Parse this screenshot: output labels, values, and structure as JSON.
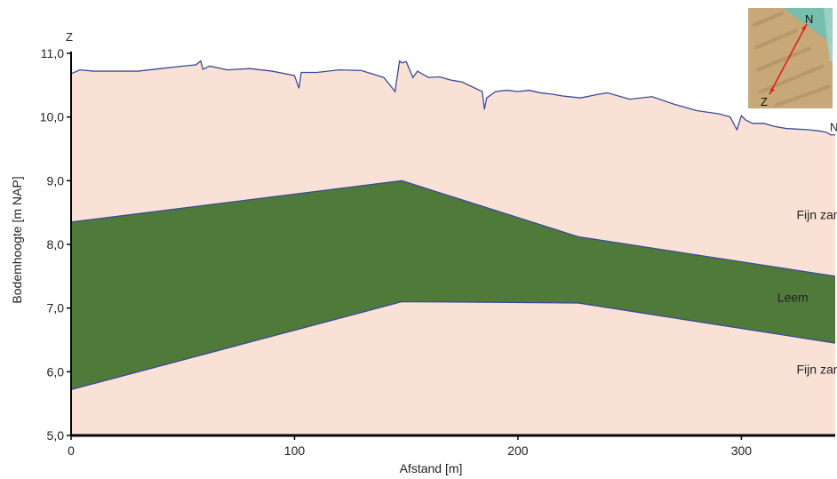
{
  "chart_data": {
    "type": "area",
    "xlabel": "Afstand [m]",
    "ylabel": "Bodemhoogte [m NAP]",
    "xlim": [
      0,
      342
    ],
    "ylim": [
      5,
      11
    ],
    "x_ticks": [
      {
        "value": 0,
        "label": "0"
      },
      {
        "value": 100,
        "label": "100"
      },
      {
        "value": 200,
        "label": "200"
      },
      {
        "value": 300,
        "label": "300"
      }
    ],
    "y_ticks": [
      {
        "value": 5,
        "label": "5,0"
      },
      {
        "value": 6,
        "label": "6,0"
      },
      {
        "value": 7,
        "label": "7,0"
      },
      {
        "value": 8,
        "label": "8,0"
      },
      {
        "value": 9,
        "label": "9,0"
      },
      {
        "value": 10,
        "label": "10,0"
      },
      {
        "value": 11,
        "label": "11,0"
      }
    ],
    "direction_labels": {
      "start": "Z",
      "end": "N"
    },
    "surface": {
      "x": [
        0,
        4,
        10,
        20,
        30,
        40,
        50,
        56,
        58,
        59,
        62,
        70,
        80,
        90,
        100,
        102,
        103,
        105,
        110,
        120,
        130,
        140,
        145,
        147,
        148,
        150,
        153,
        155,
        160,
        165,
        170,
        175,
        184,
        185,
        186,
        188,
        190,
        195,
        200,
        205,
        210,
        215,
        220,
        228,
        235,
        240,
        250,
        260,
        270,
        280,
        290,
        295,
        298,
        300,
        302,
        305,
        310,
        315,
        320,
        330,
        335,
        338,
        340,
        342
      ],
      "y": [
        10.68,
        10.74,
        10.72,
        10.72,
        10.72,
        10.76,
        10.8,
        10.82,
        10.88,
        10.75,
        10.8,
        10.74,
        10.76,
        10.72,
        10.65,
        10.45,
        10.7,
        10.7,
        10.7,
        10.74,
        10.73,
        10.62,
        10.4,
        10.88,
        10.85,
        10.87,
        10.62,
        10.72,
        10.62,
        10.63,
        10.58,
        10.55,
        10.4,
        10.12,
        10.3,
        10.35,
        10.4,
        10.42,
        10.4,
        10.42,
        10.38,
        10.36,
        10.33,
        10.3,
        10.35,
        10.38,
        10.28,
        10.32,
        10.2,
        10.1,
        10.05,
        10.0,
        9.8,
        10.02,
        9.95,
        9.9,
        9.9,
        9.85,
        9.82,
        9.8,
        9.78,
        9.76,
        9.72,
        9.72
      ]
    },
    "layers": [
      {
        "name": "Fijn zand",
        "color": "#f9e1d5",
        "label_pos": {
          "x": 336,
          "y": 8.4
        }
      },
      {
        "name": "Leem",
        "color": "#507a3a",
        "top": {
          "x": [
            0,
            148,
            227,
            342
          ],
          "y": [
            8.35,
            9.0,
            8.12,
            7.5
          ]
        },
        "bottom": {
          "x": [
            0,
            148,
            227,
            342
          ],
          "y": [
            5.72,
            7.1,
            7.08,
            6.45
          ]
        },
        "label_pos": {
          "x": 323,
          "y": 7.1
        }
      },
      {
        "name": "Fijn zand",
        "color": "#f9e1d5",
        "label_pos": {
          "x": 336,
          "y": 5.97
        }
      }
    ],
    "boundary_color": "#3a4a9a",
    "grid": false,
    "legend": "none"
  },
  "inset_map": {
    "labels": {
      "north": "N",
      "south": "Z"
    },
    "colors": {
      "land": "#c8a878",
      "water": "#6fc0b4",
      "arrow": "#e02020"
    }
  }
}
